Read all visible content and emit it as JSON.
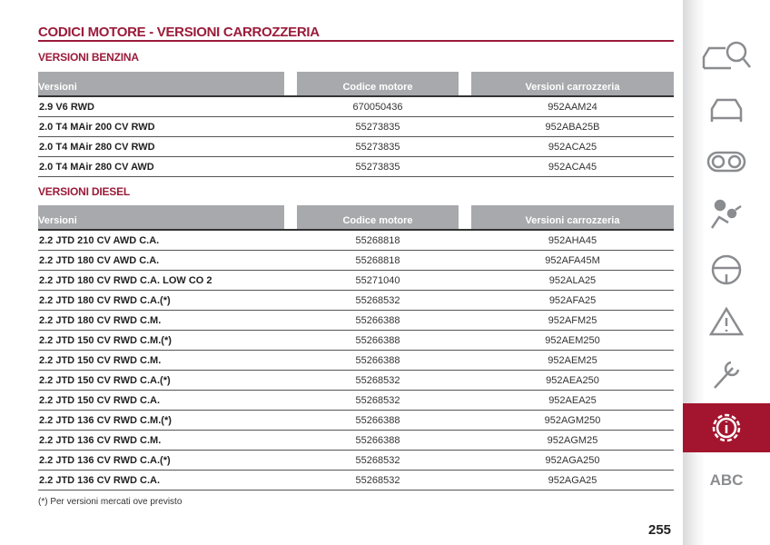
{
  "title": "CODICI MOTORE - VERSIONI CARROZZERIA",
  "benzina": {
    "heading": "VERSIONI BENZINA",
    "columns": [
      "Versioni",
      "Codice motore",
      "Versioni carrozzeria"
    ],
    "rows": [
      [
        "2.9 V6 RWD",
        "670050436",
        "952AAM24"
      ],
      [
        "2.0 T4 MAir 200 CV RWD",
        "55273835",
        "952ABA25B"
      ],
      [
        "2.0 T4 MAir 280 CV RWD",
        "55273835",
        "952ACA25"
      ],
      [
        "2.0 T4 MAir 280 CV AWD",
        "55273835",
        "952ACA45"
      ]
    ]
  },
  "diesel": {
    "heading": "VERSIONI DIESEL",
    "columns": [
      "Versioni",
      "Codice motore",
      "Versioni carrozzeria"
    ],
    "rows": [
      [
        "2.2 JTD 210 CV AWD C.A.",
        "55268818",
        "952AHA45"
      ],
      [
        "2.2 JTD 180 CV AWD C.A.",
        "55268818",
        "952AFA45M"
      ],
      [
        "2.2 JTD 180 CV RWD C.A. LOW CO 2",
        "55271040",
        "952ALA25"
      ],
      [
        "2.2 JTD 180 CV RWD C.A.(*)",
        "55268532",
        "952AFA25"
      ],
      [
        "2.2 JTD 180 CV RWD C.M.",
        "55266388",
        "952AFM25"
      ],
      [
        "2.2 JTD 150 CV RWD C.M.(*)",
        "55266388",
        "952AEM250"
      ],
      [
        "2.2 JTD 150 CV RWD C.M.",
        "55266388",
        "952AEM25"
      ],
      [
        "2.2 JTD 150 CV RWD C.A.(*)",
        "55268532",
        "952AEA250"
      ],
      [
        "2.2 JTD 150 CV RWD C.A.",
        "55268532",
        "952AEA25"
      ],
      [
        "2.2 JTD 136 CV RWD C.M.(*)",
        "55266388",
        "952AGM250"
      ],
      [
        "2.2 JTD 136 CV RWD C.M.",
        "55266388",
        "952AGM25"
      ],
      [
        "2.2 JTD 136 CV RWD C.A.(*)",
        "55268532",
        "952AGA250"
      ],
      [
        "2.2 JTD 136 CV RWD C.A.",
        "55268532",
        "952AGA25"
      ]
    ]
  },
  "note": "(*) Per versioni mercati ove previsto",
  "page_number": "255",
  "sidebar": {
    "icons": [
      "car-search-icon",
      "car-icon",
      "dashboard-icon",
      "airbag-icon",
      "steering-wheel-icon",
      "warning-triangle-icon",
      "wrench-icon",
      "info-gear-icon"
    ],
    "active": "info-gear-icon",
    "abc_label": "ABC",
    "accent": "#a3152e"
  }
}
